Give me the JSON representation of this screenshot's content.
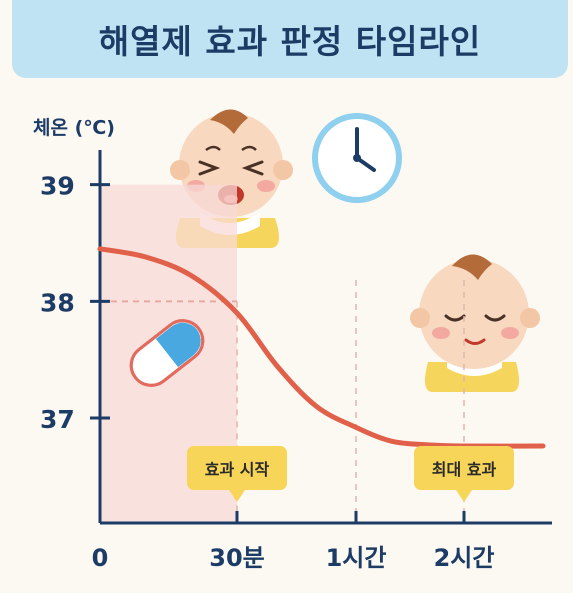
{
  "title": "해열제 효과 판정 타임라인",
  "colors": {
    "banner": "#bfe3f3",
    "title_text": "#1c3c66",
    "axis": "#1c3c66",
    "curve": "#e0604a",
    "shade": "#f8d9d7",
    "label_box": "#f7d558",
    "clock": "#8fd0ee",
    "pill_red": "#e36b5e",
    "pill_blue": "#4aa8e0"
  },
  "chart_data": {
    "type": "line",
    "ylabel": "체온 (℃)",
    "x_ticks": [
      {
        "value": 0,
        "label": "0"
      },
      {
        "value": 30,
        "label": "30분"
      },
      {
        "value": 60,
        "label": "1시간"
      },
      {
        "value": 120,
        "label": "2시간"
      }
    ],
    "y_ticks": [
      37,
      38,
      39
    ],
    "ylim": [
      36.1,
      39.4
    ],
    "series": [
      {
        "x": [
          0,
          10,
          20,
          30,
          40,
          50,
          60,
          80,
          100,
          120,
          140
        ],
        "y": [
          38.45,
          38.38,
          38.22,
          37.9,
          37.45,
          37.1,
          36.92,
          36.8,
          36.77,
          36.76,
          36.76
        ]
      }
    ],
    "shaded_region": {
      "x": [
        0,
        30
      ],
      "y_top": 39
    },
    "reference_line": {
      "y": 38,
      "x": [
        0,
        30
      ]
    },
    "annotations": [
      {
        "x": 30,
        "label": "효과 시작"
      },
      {
        "x": 120,
        "label": "최대 효과"
      }
    ]
  },
  "illustrations": {
    "crying_baby": "crying-baby-icon",
    "sleeping_baby": "sleeping-baby-icon",
    "clock": "clock-icon",
    "pill": "pill-capsule-icon"
  }
}
